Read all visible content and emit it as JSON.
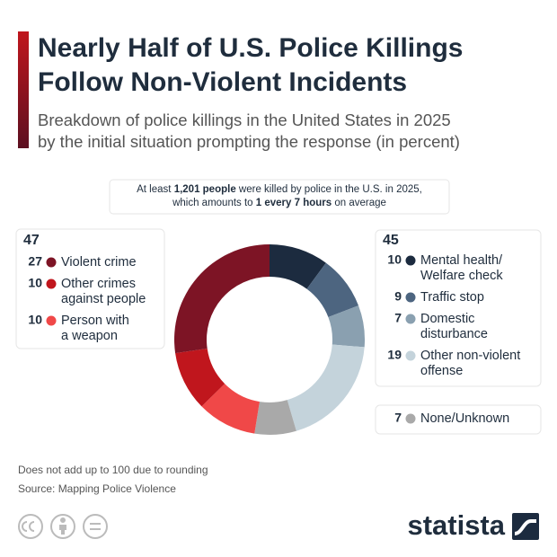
{
  "chart_data": {
    "type": "donut",
    "title": [
      "Nearly Half of U.S. Police Killings",
      "Follow Non-Violent Incidents"
    ],
    "subtitle": [
      "Breakdown of police killings in the United States in 2025",
      "by the initial situation prompting the response (in percent)"
    ],
    "annotation": [
      [
        {
          "text": "At least ",
          "bold": false
        },
        {
          "text": "1,201 people",
          "bold": true
        },
        {
          "text": " were killed by police in the U.S. in 2025,",
          "bold": false
        }
      ],
      [
        {
          "text": "which amounts to ",
          "bold": false
        },
        {
          "text": "1 every 7 hours",
          "bold": true
        },
        {
          "text": " on average",
          "bold": false
        }
      ]
    ],
    "groups": [
      {
        "total": 47,
        "items": [
          {
            "label": [
              "Violent crime"
            ],
            "value": 27,
            "color": "#7d1425"
          },
          {
            "label": [
              "Other crimes",
              "against people"
            ],
            "value": 10,
            "color": "#c0161d"
          },
          {
            "label": [
              "Person with",
              "a weapon"
            ],
            "value": 10,
            "color": "#f04848"
          }
        ]
      },
      {
        "total": 45,
        "items": [
          {
            "label": [
              "Mental health/",
              "Welfare check"
            ],
            "value": 10,
            "color": "#1c2b3f"
          },
          {
            "label": [
              "Traffic stop"
            ],
            "value": 9,
            "color": "#4d6580"
          },
          {
            "label": [
              "Domestic",
              "disturbance"
            ],
            "value": 7,
            "color": "#8aa0b0"
          },
          {
            "label": [
              "Other non-violent",
              "offense"
            ],
            "value": 19,
            "color": "#c4d3db"
          }
        ]
      },
      {
        "items": [
          {
            "label": [
              "None/Unknown"
            ],
            "value": 7,
            "color": "#a9a9a9"
          }
        ]
      }
    ],
    "notes": [
      "Does not add up to 100 due to rounding",
      "Source: Mapping Police Violence"
    ],
    "brand": "statista"
  }
}
